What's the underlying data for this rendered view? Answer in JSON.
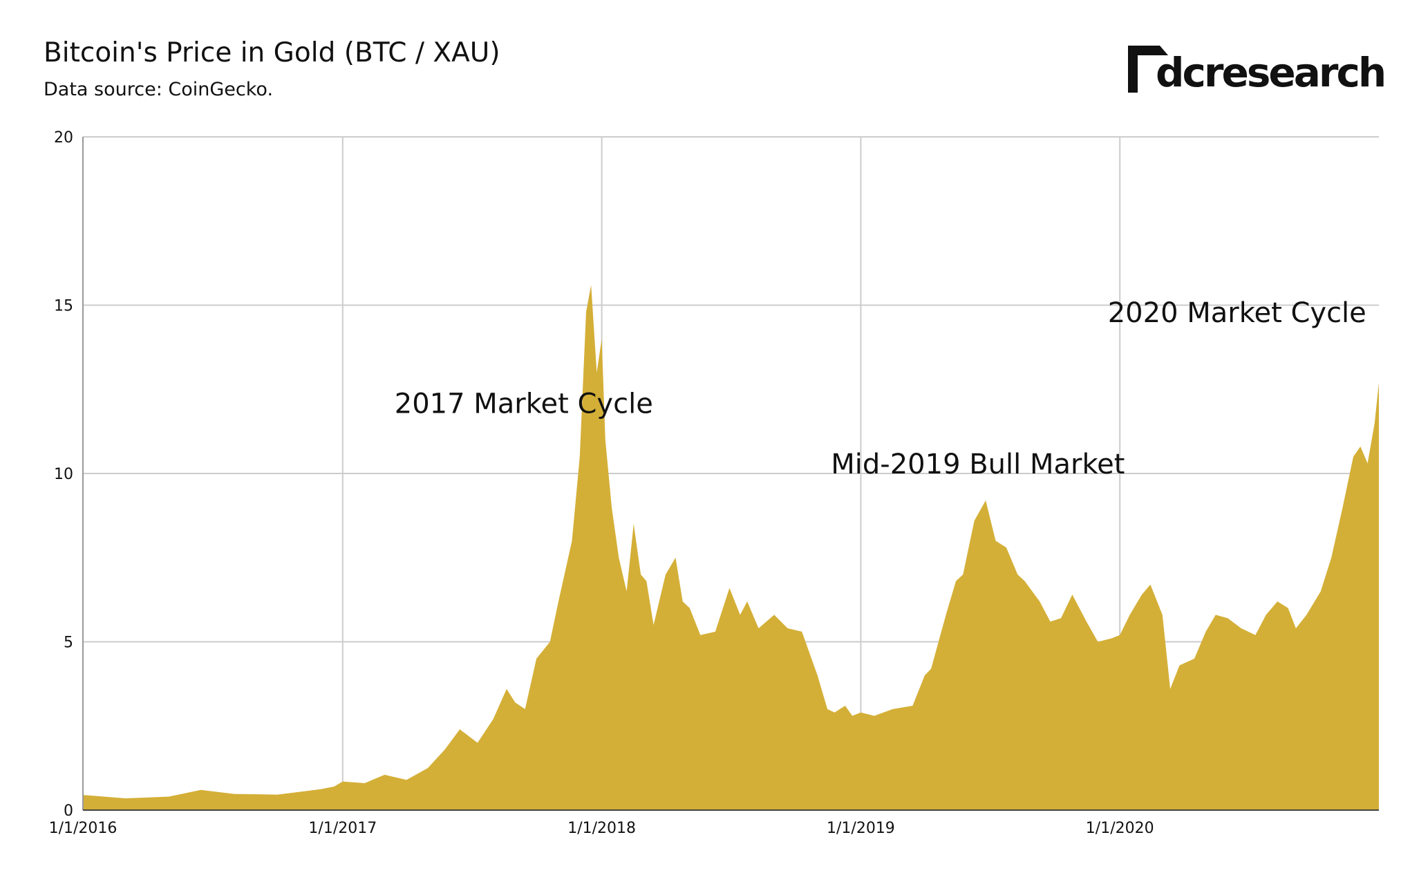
{
  "header": {
    "title": "Bitcoin's Price in Gold (BTC / XAU)",
    "subtitle": "Data source: CoinGecko.",
    "brand": "dcresearch"
  },
  "colors": {
    "area": "#d4af37",
    "grid": "#cccccc",
    "axis": "#999999"
  },
  "chart_data": {
    "type": "area",
    "title": "Bitcoin's Price in Gold (BTC / XAU)",
    "subtitle": "Data source: CoinGecko.",
    "ylim": [
      0,
      20
    ],
    "yticks": [
      0,
      5,
      10,
      15,
      20
    ],
    "xlim": [
      "2016-01-01",
      "2020-12-31"
    ],
    "xticks": [
      "1/1/2016",
      "1/1/2017",
      "1/1/2018",
      "1/1/2019",
      "1/1/2020"
    ],
    "grid": true,
    "annotations": [
      {
        "text": "2017 Market Cycle",
        "x": "2017-03-15",
        "y": 11.8
      },
      {
        "text": "Mid-2019 Bull Market",
        "x": "2018-11-20",
        "y": 10.0
      },
      {
        "text": "2020 Market Cycle",
        "x": "2019-12-15",
        "y": 14.5
      }
    ],
    "x": [
      "2016-01-01",
      "2016-03-01",
      "2016-05-01",
      "2016-06-15",
      "2016-08-01",
      "2016-10-01",
      "2016-12-01",
      "2016-12-20",
      "2017-01-01",
      "2017-02-01",
      "2017-03-01",
      "2017-04-01",
      "2017-05-01",
      "2017-05-25",
      "2017-06-15",
      "2017-07-10",
      "2017-08-01",
      "2017-08-20",
      "2017-09-01",
      "2017-09-15",
      "2017-10-01",
      "2017-10-20",
      "2017-11-01",
      "2017-11-20",
      "2017-12-01",
      "2017-12-10",
      "2017-12-17",
      "2017-12-25",
      "2018-01-01",
      "2018-01-06",
      "2018-01-15",
      "2018-01-25",
      "2018-02-05",
      "2018-02-15",
      "2018-02-25",
      "2018-03-05",
      "2018-03-15",
      "2018-04-01",
      "2018-04-15",
      "2018-04-25",
      "2018-05-05",
      "2018-05-20",
      "2018-06-10",
      "2018-06-30",
      "2018-07-15",
      "2018-07-25",
      "2018-08-10",
      "2018-09-01",
      "2018-09-20",
      "2018-10-10",
      "2018-11-01",
      "2018-11-15",
      "2018-11-25",
      "2018-12-10",
      "2018-12-20",
      "2019-01-01",
      "2019-01-20",
      "2019-02-15",
      "2019-03-15",
      "2019-04-01",
      "2019-04-10",
      "2019-05-01",
      "2019-05-15",
      "2019-05-25",
      "2019-06-10",
      "2019-06-26",
      "2019-07-10",
      "2019-07-25",
      "2019-08-10",
      "2019-08-20",
      "2019-09-10",
      "2019-09-25",
      "2019-10-10",
      "2019-10-26",
      "2019-11-15",
      "2019-12-01",
      "2019-12-20",
      "2020-01-01",
      "2020-01-15",
      "2020-02-01",
      "2020-02-13",
      "2020-03-01",
      "2020-03-12",
      "2020-03-25",
      "2020-04-15",
      "2020-05-01",
      "2020-05-15",
      "2020-06-01",
      "2020-06-20",
      "2020-07-10",
      "2020-07-25",
      "2020-08-10",
      "2020-08-25",
      "2020-09-05",
      "2020-09-20",
      "2020-10-10",
      "2020-10-25",
      "2020-11-10",
      "2020-11-25",
      "2020-12-05",
      "2020-12-15",
      "2020-12-25",
      "2020-12-31"
    ],
    "y": [
      0.45,
      0.35,
      0.4,
      0.6,
      0.48,
      0.46,
      0.62,
      0.7,
      0.85,
      0.8,
      1.05,
      0.9,
      1.25,
      1.8,
      2.4,
      2.0,
      2.7,
      3.6,
      3.2,
      3.0,
      4.5,
      5.0,
      6.2,
      8.0,
      10.5,
      14.8,
      15.6,
      13.0,
      14.0,
      11.0,
      9.0,
      7.5,
      6.5,
      8.5,
      7.0,
      6.8,
      5.5,
      7.0,
      7.5,
      6.2,
      6.0,
      5.2,
      5.3,
      6.6,
      5.8,
      6.2,
      5.4,
      5.8,
      5.4,
      5.3,
      4.0,
      3.0,
      2.9,
      3.1,
      2.8,
      2.9,
      2.8,
      3.0,
      3.1,
      4.0,
      4.2,
      5.8,
      6.8,
      7.0,
      8.6,
      9.2,
      8.0,
      7.8,
      7.0,
      6.8,
      6.2,
      5.6,
      5.7,
      6.4,
      5.6,
      5.0,
      5.1,
      5.2,
      5.8,
      6.4,
      6.7,
      5.8,
      3.6,
      4.3,
      4.5,
      5.3,
      5.8,
      5.7,
      5.4,
      5.2,
      5.8,
      6.2,
      6.0,
      5.4,
      5.8,
      6.5,
      7.5,
      9.0,
      10.5,
      10.8,
      10.3,
      11.5,
      12.7
    ]
  }
}
